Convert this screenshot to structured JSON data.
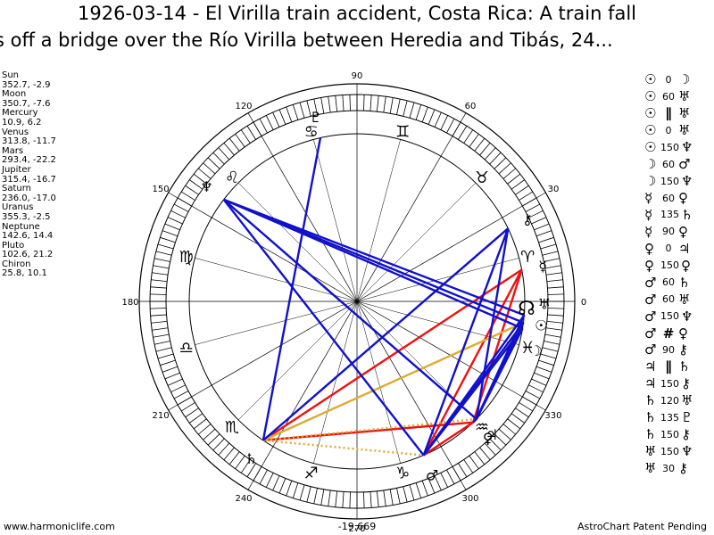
{
  "title": {
    "line1": "1926-03-14 - El Virilla train accident, Costa Rica: A train fall",
    "line2": "s off a bridge over the Río Virilla between Heredia and Tibás, 24..."
  },
  "planets": [
    {
      "name": "Sun",
      "value": "352.7, -2.9",
      "lon": 352.7,
      "glyph": "☉"
    },
    {
      "name": "Moon",
      "value": "350.7, -7.6",
      "lon": 350.7,
      "glyph": "☽"
    },
    {
      "name": "Mercury",
      "value": "10.9, 6.2",
      "lon": 10.9,
      "glyph": "☿"
    },
    {
      "name": "Venus",
      "value": "313.8, -11.7",
      "lon": 313.8,
      "glyph": "♀"
    },
    {
      "name": "Mars",
      "value": "293.4, -22.2",
      "lon": 293.4,
      "glyph": "♂"
    },
    {
      "name": "Jupiter",
      "value": "315.4, -16.7",
      "lon": 315.4,
      "glyph": "♃"
    },
    {
      "name": "Saturn",
      "value": "236.0, -17.0",
      "lon": 236.0,
      "glyph": "♄"
    },
    {
      "name": "Uranus",
      "value": "355.3, -2.5",
      "lon": 355.3,
      "glyph": "♅"
    },
    {
      "name": "Neptune",
      "value": "142.6, 14.4",
      "lon": 142.6,
      "glyph": "♆"
    },
    {
      "name": "Pluto",
      "value": "102.6, 21.2",
      "lon": 102.6,
      "glyph": "♇"
    },
    {
      "name": "Chiron",
      "value": "25.8, 10.1",
      "lon": 25.8,
      "glyph": "⚷"
    }
  ],
  "wheel_labels": [
    "0",
    "30",
    "60",
    "90",
    "120",
    "150",
    "180",
    "210",
    "240",
    "270",
    "300",
    "330"
  ],
  "center_readout": "-19,669",
  "zodiac": [
    {
      "sign": "aries",
      "glyph": "♈"
    },
    {
      "sign": "taurus",
      "glyph": "♉"
    },
    {
      "sign": "gemini",
      "glyph": "♊"
    },
    {
      "sign": "cancer",
      "glyph": "♋"
    },
    {
      "sign": "leo",
      "glyph": "♌"
    },
    {
      "sign": "virgo",
      "glyph": "♍"
    },
    {
      "sign": "libra",
      "glyph": "♎"
    },
    {
      "sign": "scorpio",
      "glyph": "♏"
    },
    {
      "sign": "sagittarius",
      "glyph": "♐"
    },
    {
      "sign": "capricorn",
      "glyph": "♑"
    },
    {
      "sign": "aquarius",
      "glyph": "♒"
    },
    {
      "sign": "pisces",
      "glyph": "♓"
    }
  ],
  "node_glyph": "☊",
  "aspects": [
    {
      "p1": "☉",
      "angle": "0",
      "p2": "☽",
      "sym": false
    },
    {
      "p1": "☉",
      "angle": "60",
      "p2": "♅",
      "sym": false
    },
    {
      "p1": "☉",
      "angle": "∥",
      "p2": "♅",
      "sym": true
    },
    {
      "p1": "☉",
      "angle": "0",
      "p2": "♅",
      "sym": false
    },
    {
      "p1": "☉",
      "angle": "150",
      "p2": "♆",
      "sym": false
    },
    {
      "p1": "☽",
      "angle": "60",
      "p2": "♂",
      "sym": false
    },
    {
      "p1": "☽",
      "angle": "150",
      "p2": "♆",
      "sym": false
    },
    {
      "p1": "☿",
      "angle": "60",
      "p2": "♀",
      "sym": false
    },
    {
      "p1": "☿",
      "angle": "135",
      "p2": "♄",
      "sym": false
    },
    {
      "p1": "☿",
      "angle": "90",
      "p2": "♀",
      "sym": false
    },
    {
      "p1": "♀",
      "angle": "0",
      "p2": "♃",
      "sym": false
    },
    {
      "p1": "♀",
      "angle": "150",
      "p2": "♀",
      "sym": false
    },
    {
      "p1": "♂",
      "angle": "60",
      "p2": "♄",
      "sym": false
    },
    {
      "p1": "♂",
      "angle": "60",
      "p2": "♅",
      "sym": false
    },
    {
      "p1": "♂",
      "angle": "150",
      "p2": "♆",
      "sym": false
    },
    {
      "p1": "♂",
      "angle": "#",
      "p2": "♀",
      "sym": true
    },
    {
      "p1": "♂",
      "angle": "90",
      "p2": "⚷",
      "sym": false
    },
    {
      "p1": "♃",
      "angle": "∥",
      "p2": "♄",
      "sym": true
    },
    {
      "p1": "♃",
      "angle": "150",
      "p2": "⚷",
      "sym": false
    },
    {
      "p1": "♄",
      "angle": "120",
      "p2": "♅",
      "sym": false
    },
    {
      "p1": "♄",
      "angle": "135",
      "p2": "♇",
      "sym": false
    },
    {
      "p1": "♄",
      "angle": "150",
      "p2": "⚷",
      "sym": false
    },
    {
      "p1": "♅",
      "angle": "150",
      "p2": "♆",
      "sym": false
    },
    {
      "p1": "♅",
      "angle": "30",
      "p2": "⚷",
      "sym": false
    }
  ],
  "aspect_lines": [
    {
      "a": "Venus",
      "b": "Mars",
      "color": "red",
      "style": "solid"
    },
    {
      "a": "Venus",
      "b": "Mercury",
      "color": "red",
      "style": "solid"
    },
    {
      "a": "Venus",
      "b": "Jupiter",
      "color": "red",
      "style": "dotted"
    },
    {
      "a": "Mercury",
      "b": "Mars",
      "color": "red",
      "style": "solid"
    },
    {
      "a": "Mercury",
      "b": "Saturn",
      "color": "red",
      "style": "solid"
    },
    {
      "a": "Saturn",
      "b": "Venus",
      "color": "red",
      "style": "solid"
    },
    {
      "a": "Sun",
      "b": "Saturn",
      "color": "orange",
      "style": "solid"
    },
    {
      "a": "Saturn",
      "b": "Mars",
      "color": "orange",
      "style": "dotted"
    },
    {
      "a": "Jupiter",
      "b": "Saturn",
      "color": "orange",
      "style": "dotted"
    },
    {
      "a": "Neptune",
      "b": "Sun",
      "color": "blue",
      "style": "solid"
    },
    {
      "a": "Neptune",
      "b": "Moon",
      "color": "blue",
      "style": "solid"
    },
    {
      "a": "Neptune",
      "b": "Uranus",
      "color": "blue",
      "style": "solid"
    },
    {
      "a": "Neptune",
      "b": "Mars",
      "color": "blue",
      "style": "solid"
    },
    {
      "a": "Neptune",
      "b": "Jupiter",
      "color": "blue",
      "style": "solid"
    },
    {
      "a": "Venus",
      "b": "Jupiter",
      "color": "blue",
      "style": "solid"
    },
    {
      "a": "Saturn",
      "b": "Chiron",
      "color": "blue",
      "style": "solid"
    },
    {
      "a": "Saturn",
      "b": "Pluto",
      "color": "blue",
      "style": "solid"
    },
    {
      "a": "Mars",
      "b": "Chiron",
      "color": "blue",
      "style": "solid"
    },
    {
      "a": "Mars",
      "b": "Sun",
      "color": "blue",
      "style": "solid"
    },
    {
      "a": "Mars",
      "b": "Moon",
      "color": "blue",
      "style": "solid"
    },
    {
      "a": "Mars",
      "b": "Uranus",
      "color": "blue",
      "style": "solid"
    },
    {
      "a": "Jupiter",
      "b": "Chiron",
      "color": "blue",
      "style": "solid"
    },
    {
      "a": "Jupiter",
      "b": "Sun",
      "color": "blue",
      "style": "solid"
    },
    {
      "a": "Jupiter",
      "b": "Moon",
      "color": "blue",
      "style": "solid"
    },
    {
      "a": "Jupiter",
      "b": "Uranus",
      "color": "blue",
      "style": "solid"
    }
  ],
  "colors": {
    "red": "#ee1111",
    "blue": "#1111cc",
    "orange": "#ddaa33"
  },
  "footer": {
    "left": "www.harmoniclife.com",
    "right": "AstroChart Patent Pending"
  }
}
